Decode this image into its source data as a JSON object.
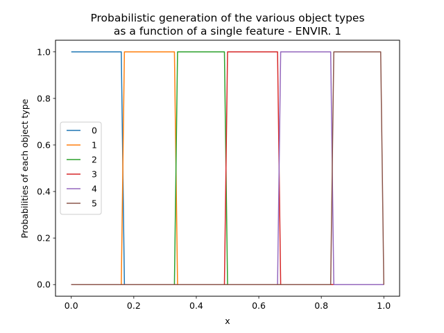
{
  "chart_data": {
    "type": "line",
    "title_lines": [
      "Probabilistic generation of the various object types",
      "as a function of a single feature - ENVIR. 1"
    ],
    "xlabel": "x",
    "ylabel": "Probabilities of each object type",
    "xlim": [
      -0.0505,
      1.0505
    ],
    "ylim": [
      -0.05,
      1.05
    ],
    "xticks": [
      0.0,
      0.2,
      0.4,
      0.6,
      0.8,
      1.0
    ],
    "xtick_labels": [
      "0.0",
      "0.2",
      "0.4",
      "0.6",
      "0.8",
      "1.0"
    ],
    "yticks": [
      0.0,
      0.2,
      0.4,
      0.6,
      0.8,
      1.0
    ],
    "ytick_labels": [
      "0.0",
      "0.2",
      "0.4",
      "0.6",
      "0.8",
      "1.0"
    ],
    "grid": false,
    "legend_position": "center-left",
    "series": [
      {
        "name": "0",
        "color": "#1f77b4",
        "x": [
          0.0,
          0.16,
          0.17,
          1.0
        ],
        "y": [
          1,
          1,
          0,
          0
        ]
      },
      {
        "name": "1",
        "color": "#ff7f0e",
        "x": [
          0.0,
          0.16,
          0.17,
          0.33,
          0.34,
          1.0
        ],
        "y": [
          0,
          0,
          1,
          1,
          0,
          0
        ]
      },
      {
        "name": "2",
        "color": "#2ca02c",
        "x": [
          0.0,
          0.33,
          0.34,
          0.49,
          0.5,
          1.0
        ],
        "y": [
          0,
          0,
          1,
          1,
          0,
          0
        ]
      },
      {
        "name": "3",
        "color": "#d62728",
        "x": [
          0.0,
          0.49,
          0.5,
          0.66,
          0.67,
          1.0
        ],
        "y": [
          0,
          0,
          1,
          1,
          0,
          0
        ]
      },
      {
        "name": "4",
        "color": "#9467bd",
        "x": [
          0.0,
          0.66,
          0.67,
          0.83,
          0.84,
          1.0
        ],
        "y": [
          0,
          0,
          1,
          1,
          0,
          0
        ]
      },
      {
        "name": "5",
        "color": "#8c564b",
        "x": [
          0.0,
          0.83,
          0.84,
          0.99,
          1.0
        ],
        "y": [
          0,
          0,
          1,
          1,
          0
        ]
      }
    ]
  }
}
